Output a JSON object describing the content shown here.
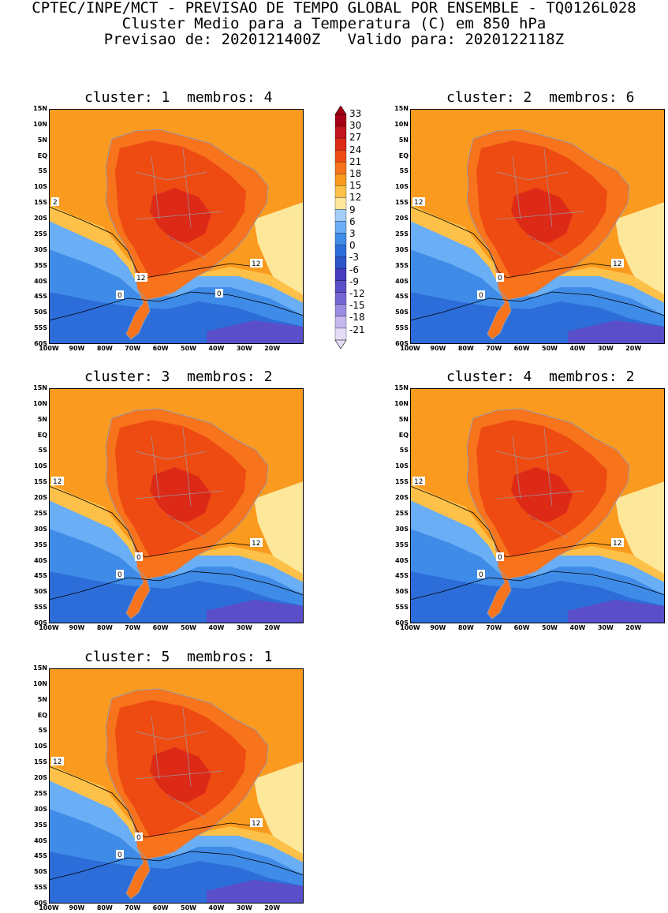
{
  "header": {
    "line1": "CPTEC/INPE/MCT - PREVISAO DE TEMPO GLOBAL POR ENSEMBLE - TQ0126L028",
    "line2": "Cluster Medio para a Temperatura (C) em 850 hPa",
    "line3": "Previsao de: 2020121400Z   Valido para: 2020122118Z"
  },
  "panels": [
    {
      "title": "cluster: 1  membros: 4",
      "contour_labels": [
        "2",
        "12",
        "12",
        "0",
        "0"
      ]
    },
    {
      "title": "cluster: 2  membros: 6",
      "contour_labels": [
        "12",
        "12",
        "0",
        "0"
      ]
    },
    {
      "title": "cluster: 3  membros: 2",
      "contour_labels": [
        "12",
        "12",
        "0",
        "0"
      ]
    },
    {
      "title": "cluster: 4  membros: 2",
      "contour_labels": [
        "12",
        "12",
        "0",
        "0"
      ]
    },
    {
      "title": "cluster: 5  membros: 1",
      "contour_labels": [
        "12",
        "12",
        "0",
        "0"
      ]
    }
  ],
  "axes": {
    "lat_labels": [
      "15N",
      "10N",
      "5N",
      "EQ",
      "5S",
      "10S",
      "15S",
      "20S",
      "25S",
      "30S",
      "35S",
      "40S",
      "45S",
      "50S",
      "55S",
      "60S"
    ],
    "lon_labels": [
      "100W",
      "90W",
      "80W",
      "70W",
      "60W",
      "50W",
      "40W",
      "30W",
      "20W"
    ]
  },
  "colorbar": {
    "labels": [
      "33",
      "30",
      "27",
      "24",
      "21",
      "18",
      "15",
      "12",
      "9",
      "6",
      "3",
      "0",
      "-3",
      "-6",
      "-9",
      "-12",
      "-15",
      "-18",
      "-21"
    ],
    "colors": [
      "#a50015",
      "#c0141e",
      "#dc2a17",
      "#ee4b12",
      "#f7731c",
      "#fa9a1e",
      "#fdc149",
      "#fde79a",
      "#a3cdf8",
      "#6aaef5",
      "#3f8ce8",
      "#2c6dd9",
      "#2d53c9",
      "#473cbf",
      "#5a4ec9",
      "#7566d4",
      "#9a8ce0",
      "#c6b8ee",
      "#e6dcf8"
    ]
  },
  "palette": {
    "warm": "#fa9a1e",
    "warmer": "#f7731c",
    "hot": "#ee4b12",
    "hotter": "#dc2a17",
    "mild": "#fdc149",
    "cool": "#fde79a",
    "blue1": "#6aaef5",
    "blue2": "#3f8ce8",
    "blue3": "#2c6dd9",
    "purple": "#5a4ec9",
    "coast": "#9a9aa6"
  }
}
